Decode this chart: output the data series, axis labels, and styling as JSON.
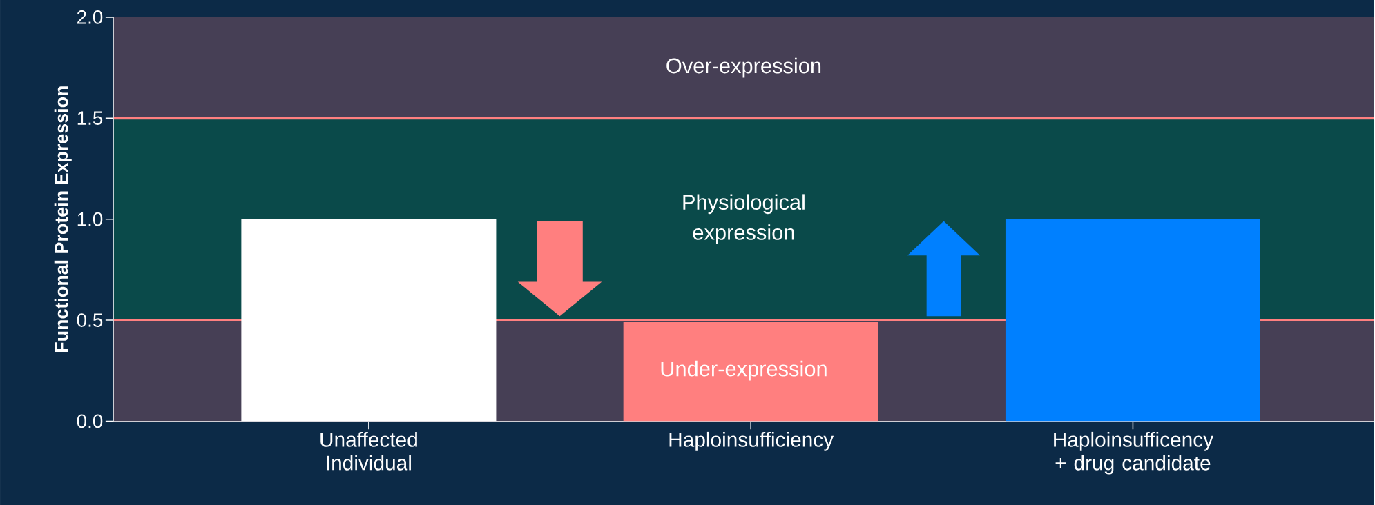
{
  "chart_data": {
    "type": "bar",
    "ylabel": "Functional Protein Expression",
    "categories": [
      "Unaffected Individual",
      "Haploinsufficiency",
      "Haploinsufficency + drug candidate"
    ],
    "values": [
      1.0,
      0.49,
      1.0
    ],
    "colors": [
      "#ffffff",
      "#ff7f7f",
      "#0080ff"
    ],
    "ylim": [
      0,
      2
    ],
    "yticks": [
      {
        "value": 0,
        "label": "0.0"
      },
      {
        "value": 0.5,
        "label": "0.5"
      },
      {
        "value": 1,
        "label": "1.0"
      },
      {
        "value": 1.5,
        "label": "1.5"
      },
      {
        "value": 2,
        "label": "2.0"
      }
    ],
    "bands": [
      {
        "axis": "y",
        "from": 1.5,
        "to": 2,
        "label": "Over-expression",
        "color": "#463f55"
      },
      {
        "axis": "y",
        "from": 0.5,
        "to": 1.5,
        "label": "Physiological expression",
        "color": "#0a4a4a"
      },
      {
        "axis": "y",
        "from": 0,
        "to": 0.5,
        "label": "Under-expression",
        "color": "#463f55"
      }
    ],
    "ref_lines": [
      {
        "axis": "y",
        "value": 0.5,
        "color": "#ff8080"
      },
      {
        "axis": "y",
        "value": 1.5,
        "color": "#ff8080"
      }
    ],
    "grid": false
  }
}
